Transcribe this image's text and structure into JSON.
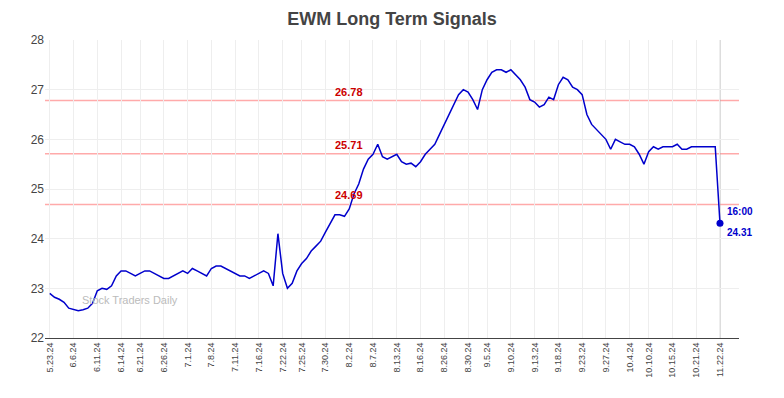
{
  "chart_data": {
    "type": "line",
    "title": "EWM Long Term Signals",
    "categories": [
      "5.23.24",
      null,
      null,
      null,
      null,
      "6.6.24",
      null,
      null,
      null,
      null,
      "6.11.24",
      null,
      null,
      null,
      null,
      "6.14.24",
      null,
      null,
      null,
      "6.21.24",
      null,
      null,
      null,
      null,
      "6.26.24",
      null,
      null,
      null,
      null,
      "7.1.24",
      null,
      null,
      null,
      null,
      "7.8.24",
      null,
      null,
      null,
      null,
      "7.11.24",
      null,
      null,
      null,
      null,
      "7.16.24",
      null,
      null,
      null,
      null,
      "7.22.24",
      null,
      null,
      null,
      "7.25.24",
      null,
      null,
      null,
      null,
      "7.30.24",
      null,
      null,
      null,
      null,
      "8.2.24",
      null,
      null,
      null,
      null,
      "8.7.24",
      null,
      null,
      null,
      null,
      "8.13.24",
      null,
      null,
      null,
      null,
      "8.16.24",
      null,
      null,
      null,
      null,
      "8.26.24",
      null,
      null,
      null,
      null,
      "8.30.24",
      null,
      null,
      null,
      "9.5.24",
      null,
      null,
      null,
      null,
      "9.10.24",
      null,
      null,
      null,
      null,
      "9.13.24",
      null,
      null,
      null,
      null,
      "9.18.24",
      null,
      null,
      null,
      null,
      "9.23.24",
      null,
      null,
      null,
      null,
      "9.27.24",
      null,
      null,
      null,
      null,
      "10.4.24",
      null,
      null,
      null,
      "10.10.24",
      null,
      null,
      null,
      null,
      "10.15.24",
      null,
      null,
      null,
      null,
      "10.21.24",
      null,
      null,
      null,
      null,
      "11.22.24"
    ],
    "values": [
      22.9,
      22.82,
      22.78,
      22.72,
      22.6,
      22.58,
      22.55,
      22.57,
      22.6,
      22.7,
      22.95,
      23.0,
      22.98,
      23.05,
      23.25,
      23.35,
      23.35,
      23.3,
      23.25,
      23.3,
      23.35,
      23.35,
      23.3,
      23.25,
      23.2,
      23.2,
      23.25,
      23.3,
      23.35,
      23.3,
      23.4,
      23.35,
      23.3,
      23.25,
      23.4,
      23.45,
      23.45,
      23.4,
      23.35,
      23.3,
      23.25,
      23.25,
      23.2,
      23.25,
      23.3,
      23.35,
      23.3,
      23.05,
      24.1,
      23.3,
      23.0,
      23.1,
      23.35,
      23.5,
      23.6,
      23.75,
      23.85,
      23.95,
      24.13,
      24.3,
      24.48,
      24.48,
      24.45,
      24.6,
      24.9,
      25.1,
      25.4,
      25.6,
      25.7,
      25.9,
      25.65,
      25.6,
      25.65,
      25.7,
      25.55,
      25.5,
      25.52,
      25.45,
      25.55,
      25.7,
      25.8,
      25.9,
      26.1,
      26.3,
      26.5,
      26.7,
      26.9,
      27.0,
      26.95,
      26.8,
      26.6,
      27.0,
      27.2,
      27.35,
      27.4,
      27.4,
      27.35,
      27.4,
      27.3,
      27.2,
      27.05,
      26.8,
      26.75,
      26.65,
      26.7,
      26.85,
      26.8,
      27.1,
      27.25,
      27.2,
      27.05,
      27.0,
      26.9,
      26.5,
      26.3,
      26.2,
      26.1,
      26.0,
      25.8,
      26.0,
      25.95,
      25.9,
      25.9,
      25.85,
      25.7,
      25.5,
      25.75,
      25.85,
      25.8,
      25.85,
      25.85,
      25.85,
      25.9,
      25.8,
      25.8,
      25.85,
      25.85,
      25.85,
      25.85,
      25.85,
      25.85,
      24.31
    ],
    "color": "#0000cc",
    "ylim": [
      22,
      28
    ],
    "yticks": [
      22,
      23,
      24,
      25,
      26,
      27,
      28
    ],
    "grid": true,
    "hlines": {
      "values": [
        24.69,
        25.71,
        26.78
      ],
      "labels": [
        "24.69",
        "25.71",
        "26.78"
      ],
      "color": "#ffaaaa",
      "label_color": "#cc0000"
    },
    "annotations": [
      {
        "text": "Stock Traders Daily",
        "color": "#bbbbbb"
      }
    ],
    "last_point": {
      "label": "16:00",
      "value": 24.31,
      "value_label": "24.31",
      "color": "#0000cc"
    }
  }
}
